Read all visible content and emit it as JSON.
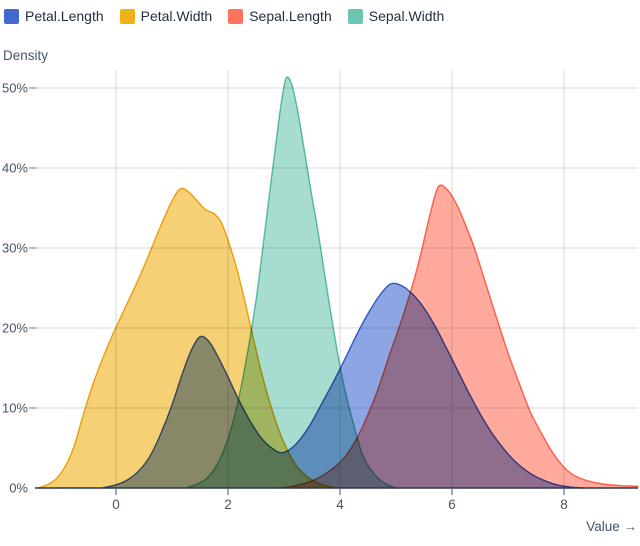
{
  "theme": {
    "background": "#ffffff",
    "legend_text": "#24303e",
    "tick_text": "#46546a",
    "axis_label_text": "#46546a",
    "grid_color": "#d7dade",
    "axis_line_color": "#2b3648",
    "x_tick_color": "#61708a",
    "y_tick_dash_color": "#8a94a3"
  },
  "chart_data": {
    "type": "area",
    "subtype": "kde-density",
    "title": "",
    "xlabel": "Value →",
    "ylabel": "Density",
    "legend_position": "top-left",
    "grid": true,
    "xlim": [
      -1.393,
      9.321
    ],
    "ylim_pct": [
      0,
      52.25
    ],
    "x_ticks": [
      0,
      2,
      4,
      6,
      8
    ],
    "y_ticks": [
      {
        "pct": 0,
        "label": "0%"
      },
      {
        "pct": 10,
        "label": "10%"
      },
      {
        "pct": 20,
        "label": "20%"
      },
      {
        "pct": 30,
        "label": "30%"
      },
      {
        "pct": 40,
        "label": "40%"
      },
      {
        "pct": 50,
        "label": "50%"
      }
    ],
    "fill_opacity": 0.6,
    "series": [
      {
        "name": "Petal.Length",
        "color": "#4269d0",
        "peaks": [
          {
            "x": 1.5,
            "density_pct": 18.9
          },
          {
            "x": 4.9,
            "density_pct": 25.5
          }
        ],
        "points": [
          [
            -0.25,
            0
          ],
          [
            0,
            0.4
          ],
          [
            0.2,
            1
          ],
          [
            0.4,
            2.1
          ],
          [
            0.6,
            3.9
          ],
          [
            0.8,
            6.8
          ],
          [
            1.0,
            10.4
          ],
          [
            1.2,
            14.6
          ],
          [
            1.35,
            17.3
          ],
          [
            1.5,
            18.9
          ],
          [
            1.65,
            18.4
          ],
          [
            1.8,
            16.7
          ],
          [
            2.0,
            13.9
          ],
          [
            2.2,
            10.9
          ],
          [
            2.4,
            8.3
          ],
          [
            2.6,
            6.2
          ],
          [
            2.8,
            4.9
          ],
          [
            2.95,
            4.4
          ],
          [
            3.1,
            4.8
          ],
          [
            3.3,
            6.2
          ],
          [
            3.5,
            8.3
          ],
          [
            3.7,
            10.9
          ],
          [
            3.9,
            13.5
          ],
          [
            4.1,
            16.3
          ],
          [
            4.3,
            19.2
          ],
          [
            4.5,
            21.8
          ],
          [
            4.7,
            24.0
          ],
          [
            4.9,
            25.5
          ],
          [
            5.1,
            25.3
          ],
          [
            5.3,
            24.2
          ],
          [
            5.5,
            22.5
          ],
          [
            5.7,
            20.2
          ],
          [
            5.9,
            17.5
          ],
          [
            6.1,
            14.7
          ],
          [
            6.3,
            11.9
          ],
          [
            6.5,
            9.3
          ],
          [
            6.7,
            7.0
          ],
          [
            6.9,
            5.1
          ],
          [
            7.1,
            3.5
          ],
          [
            7.3,
            2.3
          ],
          [
            7.5,
            1.4
          ],
          [
            7.7,
            0.8
          ],
          [
            7.9,
            0.35
          ],
          [
            8.15,
            0.1
          ],
          [
            8.35,
            0
          ]
        ]
      },
      {
        "name": "Petal.Width",
        "color": "#efb118",
        "peaks": [
          {
            "x": 1.15,
            "density_pct": 37.4
          }
        ],
        "points": [
          [
            -1.39,
            0
          ],
          [
            -1.2,
            0.5
          ],
          [
            -1.05,
            1.3
          ],
          [
            -0.9,
            2.8
          ],
          [
            -0.75,
            5.2
          ],
          [
            -0.6,
            8.8
          ],
          [
            -0.45,
            12.2
          ],
          [
            -0.3,
            15.1
          ],
          [
            -0.15,
            17.7
          ],
          [
            0,
            20.1
          ],
          [
            0.2,
            23.1
          ],
          [
            0.4,
            26.1
          ],
          [
            0.6,
            29.4
          ],
          [
            0.8,
            32.8
          ],
          [
            1.0,
            35.9
          ],
          [
            1.15,
            37.4
          ],
          [
            1.3,
            37.0
          ],
          [
            1.45,
            35.9
          ],
          [
            1.6,
            34.8
          ],
          [
            1.75,
            34.3
          ],
          [
            1.88,
            33.2
          ],
          [
            2.0,
            31.0
          ],
          [
            2.15,
            27.6
          ],
          [
            2.3,
            23.4
          ],
          [
            2.45,
            18.8
          ],
          [
            2.6,
            14.4
          ],
          [
            2.75,
            10.6
          ],
          [
            2.9,
            7.4
          ],
          [
            3.05,
            4.9
          ],
          [
            3.2,
            3.0
          ],
          [
            3.35,
            1.8
          ],
          [
            3.5,
            1.0
          ],
          [
            3.65,
            0.5
          ],
          [
            3.8,
            0.2
          ],
          [
            3.95,
            0
          ]
        ]
      },
      {
        "name": "Sepal.Length",
        "color": "#ff725c",
        "peaks": [
          {
            "x": 5.75,
            "density_pct": 37.6
          }
        ],
        "points": [
          [
            2.9,
            0
          ],
          [
            3.1,
            0.15
          ],
          [
            3.3,
            0.45
          ],
          [
            3.5,
            0.9
          ],
          [
            3.7,
            1.6
          ],
          [
            3.9,
            2.6
          ],
          [
            4.1,
            4.0
          ],
          [
            4.3,
            6.2
          ],
          [
            4.5,
            9.2
          ],
          [
            4.7,
            12.8
          ],
          [
            4.9,
            17.0
          ],
          [
            5.1,
            21.0
          ],
          [
            5.3,
            25.5
          ],
          [
            5.45,
            29.5
          ],
          [
            5.6,
            34.0
          ],
          [
            5.75,
            37.6
          ],
          [
            5.9,
            37.4
          ],
          [
            6.05,
            35.9
          ],
          [
            6.2,
            33.6
          ],
          [
            6.4,
            30.0
          ],
          [
            6.6,
            25.6
          ],
          [
            6.8,
            21.2
          ],
          [
            7.0,
            16.9
          ],
          [
            7.2,
            13.1
          ],
          [
            7.4,
            9.5
          ],
          [
            7.6,
            6.8
          ],
          [
            7.8,
            4.4
          ],
          [
            8.0,
            2.6
          ],
          [
            8.2,
            1.5
          ],
          [
            8.45,
            0.85
          ],
          [
            8.7,
            0.5
          ],
          [
            9.0,
            0.3
          ],
          [
            9.32,
            0.22
          ]
        ]
      },
      {
        "name": "Sepal.Width",
        "color": "#6cc5b0",
        "peaks": [
          {
            "x": 3.04,
            "density_pct": 51.3
          }
        ],
        "points": [
          [
            1.25,
            0
          ],
          [
            1.45,
            0.5
          ],
          [
            1.6,
            1.1
          ],
          [
            1.75,
            2.3
          ],
          [
            1.9,
            4.3
          ],
          [
            2.05,
            7.3
          ],
          [
            2.2,
            11.5
          ],
          [
            2.35,
            17.0
          ],
          [
            2.5,
            23.5
          ],
          [
            2.62,
            30.0
          ],
          [
            2.74,
            36.8
          ],
          [
            2.86,
            43.4
          ],
          [
            2.96,
            48.6
          ],
          [
            3.04,
            51.3
          ],
          [
            3.14,
            50.4
          ],
          [
            3.24,
            47.3
          ],
          [
            3.35,
            42.8
          ],
          [
            3.48,
            37.2
          ],
          [
            3.6,
            32.4
          ],
          [
            3.72,
            27.0
          ],
          [
            3.85,
            21.3
          ],
          [
            3.98,
            16.0
          ],
          [
            4.1,
            11.9
          ],
          [
            4.25,
            7.8
          ],
          [
            4.4,
            4.2
          ],
          [
            4.55,
            2.3
          ],
          [
            4.7,
            1.1
          ],
          [
            4.85,
            0.4
          ],
          [
            5.0,
            0
          ]
        ]
      }
    ]
  }
}
